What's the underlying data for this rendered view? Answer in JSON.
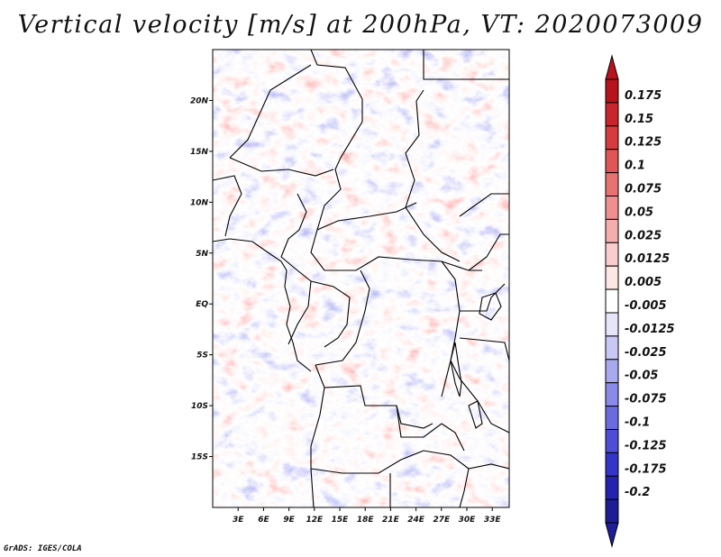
{
  "title": "Vertical velocity [m/s] at 200hPa, VT: 2020073009",
  "credit": "GrADS: IGES/COLA",
  "map": {
    "variable": "Vertical velocity",
    "units": "m/s",
    "level": "200hPa",
    "valid_time": "2020073009",
    "lon_range": [
      0,
      35
    ],
    "lat_range": [
      -20,
      25
    ]
  },
  "axes": {
    "x_ticks": [
      {
        "lon": 3,
        "label": "3E"
      },
      {
        "lon": 6,
        "label": "6E"
      },
      {
        "lon": 9,
        "label": "9E"
      },
      {
        "lon": 12,
        "label": "12E"
      },
      {
        "lon": 15,
        "label": "15E"
      },
      {
        "lon": 18,
        "label": "18E"
      },
      {
        "lon": 21,
        "label": "21E"
      },
      {
        "lon": 24,
        "label": "24E"
      },
      {
        "lon": 27,
        "label": "27E"
      },
      {
        "lon": 30,
        "label": "30E"
      },
      {
        "lon": 33,
        "label": "33E"
      }
    ],
    "y_ticks": [
      {
        "lat": 20,
        "label": "20N"
      },
      {
        "lat": 15,
        "label": "15N"
      },
      {
        "lat": 10,
        "label": "10N"
      },
      {
        "lat": 5,
        "label": "5N"
      },
      {
        "lat": 0,
        "label": "EQ"
      },
      {
        "lat": -5,
        "label": "5S"
      },
      {
        "lat": -10,
        "label": "10S"
      },
      {
        "lat": -15,
        "label": "15S"
      }
    ]
  },
  "colorbar": {
    "labels": [
      "0.175",
      "0.15",
      "0.125",
      "0.1",
      "0.075",
      "0.05",
      "0.025",
      "0.0125",
      "0.005",
      "-0.005",
      "-0.0125",
      "-0.025",
      "-0.05",
      "-0.075",
      "-0.1",
      "-0.125",
      "-0.175",
      "-0.2"
    ],
    "colors": [
      "#b8121d",
      "#c9252c",
      "#d63b3d",
      "#e05555",
      "#e87171",
      "#f08f8f",
      "#f5aeae",
      "#f9cdcd",
      "#fce6e6",
      "#ffffff",
      "#e6e6fb",
      "#c8c8f5",
      "#a9a9ef",
      "#8a8ae8",
      "#6b6be0",
      "#4d4dd6",
      "#3434c6",
      "#2323b0",
      "#1d1d96"
    ],
    "top_color": "#b8121d",
    "bottom_color": "#1d1d96"
  }
}
